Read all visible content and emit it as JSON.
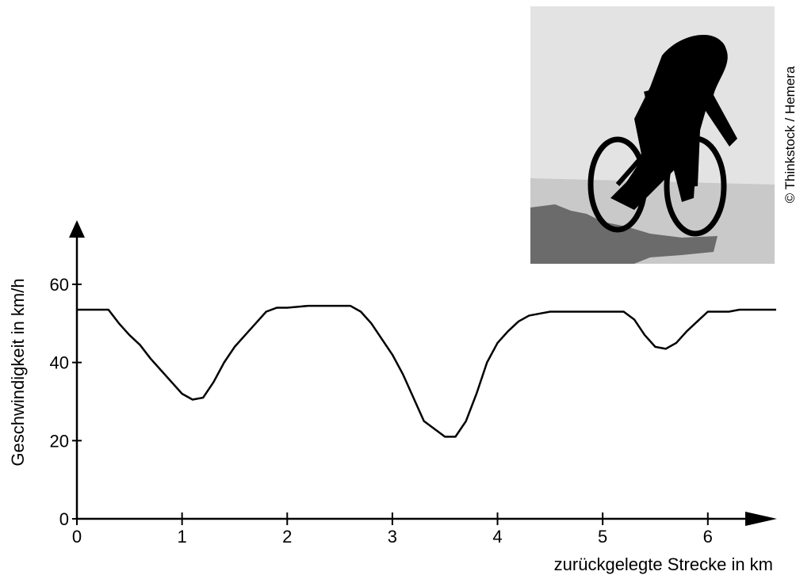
{
  "chart_data": {
    "type": "line",
    "x_label": "zurückgelegte Strecke in km",
    "y_label": "Geschwindigkeit in km/h",
    "credit": "© Thinkstock / Hemera",
    "xlim": [
      0,
      6.65
    ],
    "xticks": [
      0,
      1,
      2,
      3,
      4,
      5,
      6
    ],
    "ylim": [
      0,
      76
    ],
    "yticks": [
      0,
      20,
      40,
      60
    ],
    "color": "#000000",
    "x": [
      0,
      0.3,
      0.4,
      0.5,
      0.6,
      0.7,
      0.8,
      0.9,
      1.0,
      1.1,
      1.2,
      1.3,
      1.4,
      1.5,
      1.6,
      1.7,
      1.8,
      1.9,
      2.0,
      2.2,
      2.4,
      2.6,
      2.7,
      2.8,
      2.9,
      3.0,
      3.1,
      3.2,
      3.3,
      3.4,
      3.5,
      3.6,
      3.7,
      3.8,
      3.9,
      4.0,
      4.1,
      4.2,
      4.3,
      4.4,
      4.5,
      5.0,
      5.2,
      5.3,
      5.4,
      5.5,
      5.6,
      5.7,
      5.8,
      5.9,
      6.0,
      6.2,
      6.3,
      6.65
    ],
    "values": [
      53.5,
      53.5,
      50,
      47,
      44.5,
      41,
      38,
      35,
      32,
      30.5,
      31,
      35,
      40,
      44,
      47,
      50,
      53,
      54,
      54,
      54.5,
      54.5,
      54.5,
      53,
      50,
      46,
      42,
      37,
      31,
      25,
      23,
      21,
      21,
      25,
      32,
      40,
      45,
      48,
      50.5,
      52,
      52.5,
      53,
      53,
      53,
      51,
      47,
      44,
      43.5,
      45,
      48,
      50.5,
      53,
      53,
      53.5,
      53.5
    ]
  }
}
